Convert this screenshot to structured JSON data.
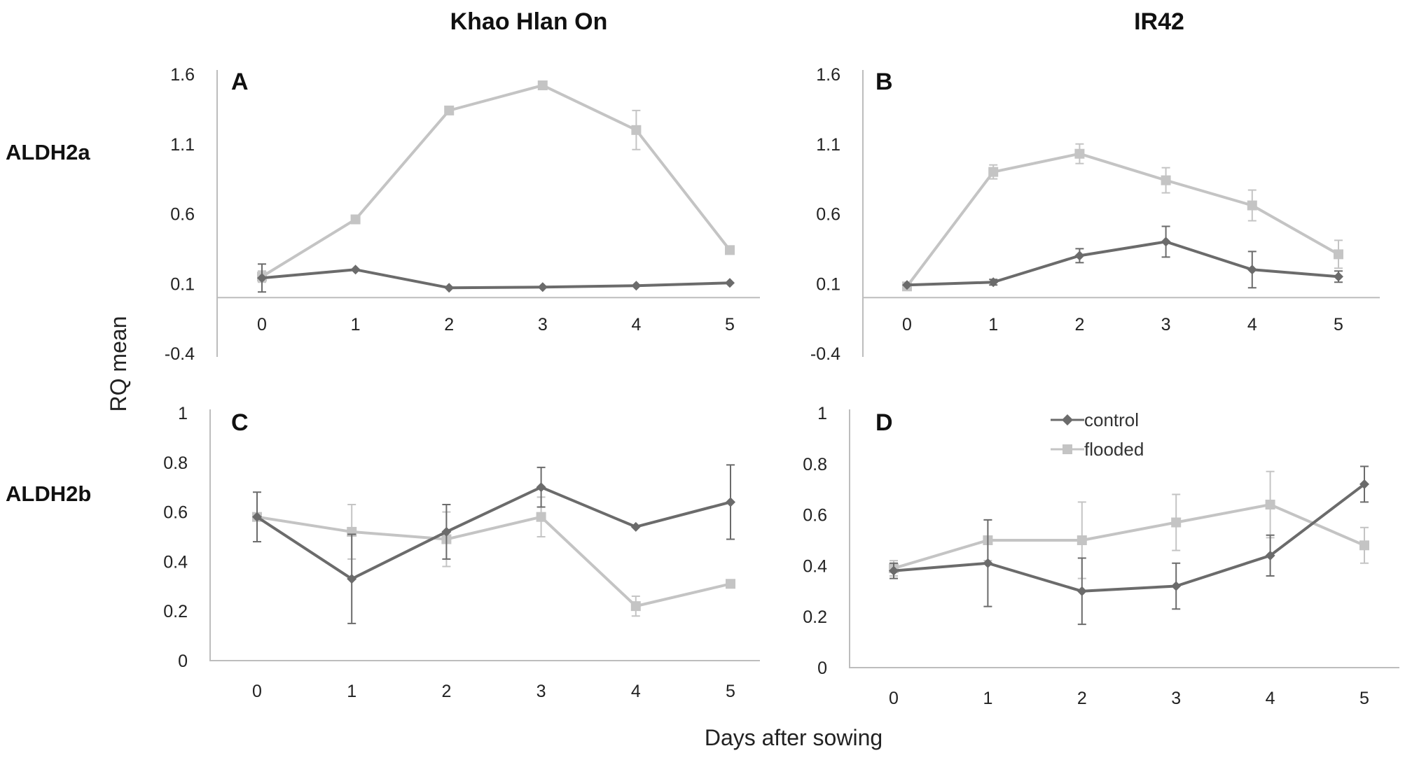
{
  "figure": {
    "column_titles": [
      "Khao Hlan On",
      "IR42"
    ],
    "row_labels": [
      "ALDH2a",
      "ALDH2b"
    ],
    "y_axis_title": "RQ mean",
    "x_axis_title": "Days after sowing"
  },
  "colors": {
    "control": "#6b6b6b",
    "flooded": "#c4c4c4",
    "axis": "#bdbdbd"
  },
  "legend": {
    "entries": [
      "control",
      "flooded"
    ]
  },
  "chart_data": [
    {
      "panel": "A",
      "type": "line",
      "gene": "ALDH2a",
      "cultivar": "Khao Hlan On",
      "x": [
        0,
        1,
        2,
        3,
        4,
        5
      ],
      "x_ticks": [
        "0",
        "1",
        "2",
        "3",
        "4",
        "5"
      ],
      "y_ticks": [
        "1.6",
        "1.1",
        "0.6",
        "0.1",
        "-0.4"
      ],
      "y_tick_values": [
        1.6,
        1.1,
        0.6,
        0.1,
        -0.4
      ],
      "ylim": [
        -0.4,
        1.6
      ],
      "baseline": 0,
      "series": [
        {
          "name": "control",
          "marker": "diamond",
          "values": [
            0.14,
            0.2,
            0.07,
            0.075,
            0.085,
            0.105
          ],
          "errors": [
            0.1,
            0,
            0,
            0,
            0,
            0
          ]
        },
        {
          "name": "flooded",
          "marker": "square",
          "values": [
            0.15,
            0.56,
            1.34,
            1.52,
            1.2,
            0.34
          ],
          "errors": [
            0.04,
            0,
            0,
            0,
            0.14,
            0
          ]
        }
      ]
    },
    {
      "panel": "B",
      "type": "line",
      "gene": "ALDH2a",
      "cultivar": "IR42",
      "x": [
        0,
        1,
        2,
        3,
        4,
        5
      ],
      "x_ticks": [
        "0",
        "1",
        "2",
        "3",
        "4",
        "5"
      ],
      "y_ticks": [
        "1.6",
        "1.1",
        "0.6",
        "0.1",
        "-0.4"
      ],
      "y_tick_values": [
        1.6,
        1.1,
        0.6,
        0.1,
        -0.4
      ],
      "ylim": [
        -0.4,
        1.6
      ],
      "baseline": 0,
      "series": [
        {
          "name": "control",
          "marker": "diamond",
          "values": [
            0.09,
            0.11,
            0.3,
            0.4,
            0.2,
            0.15
          ],
          "errors": [
            0,
            0.02,
            0.05,
            0.11,
            0.13,
            0.04
          ]
        },
        {
          "name": "flooded",
          "marker": "square",
          "values": [
            0.08,
            0.9,
            1.03,
            0.84,
            0.66,
            0.31
          ],
          "errors": [
            0,
            0.05,
            0.07,
            0.09,
            0.11,
            0.1
          ]
        }
      ]
    },
    {
      "panel": "C",
      "type": "line",
      "gene": "ALDH2b",
      "cultivar": "Khao Hlan On",
      "x": [
        0,
        1,
        2,
        3,
        4,
        5
      ],
      "x_ticks": [
        "0",
        "1",
        "2",
        "3",
        "4",
        "5"
      ],
      "y_ticks": [
        "1",
        "0.8",
        "0.6",
        "0.4",
        "0.2",
        "0"
      ],
      "y_tick_values": [
        1,
        0.8,
        0.6,
        0.4,
        0.2,
        0
      ],
      "ylim": [
        0,
        1
      ],
      "baseline": 0,
      "series": [
        {
          "name": "control",
          "marker": "diamond",
          "values": [
            0.58,
            0.33,
            0.52,
            0.7,
            0.54,
            0.64
          ],
          "errors": [
            0.1,
            0.18,
            0.11,
            0.08,
            0,
            0.15
          ]
        },
        {
          "name": "flooded",
          "marker": "square",
          "values": [
            0.58,
            0.52,
            0.49,
            0.58,
            0.22,
            0.31
          ],
          "errors": [
            0,
            0.11,
            0.11,
            0.08,
            0.04,
            0
          ]
        }
      ]
    },
    {
      "panel": "D",
      "type": "line",
      "gene": "ALDH2b",
      "cultivar": "IR42",
      "x": [
        0,
        1,
        2,
        3,
        4,
        5
      ],
      "x_ticks": [
        "0",
        "1",
        "2",
        "3",
        "4",
        "5"
      ],
      "y_ticks": [
        "1",
        "0.8",
        "0.6",
        "0.4",
        "0.2",
        "0"
      ],
      "y_tick_values": [
        1,
        0.8,
        0.6,
        0.4,
        0.2,
        0
      ],
      "ylim": [
        0,
        1
      ],
      "baseline": 0,
      "series": [
        {
          "name": "control",
          "marker": "diamond",
          "values": [
            0.38,
            0.41,
            0.3,
            0.32,
            0.44,
            0.72
          ],
          "errors": [
            0.03,
            0.17,
            0.13,
            0.09,
            0.08,
            0.07
          ]
        },
        {
          "name": "flooded",
          "marker": "square",
          "values": [
            0.39,
            0.5,
            0.5,
            0.57,
            0.64,
            0.48
          ],
          "errors": [
            0.03,
            0.08,
            0.15,
            0.11,
            0.13,
            0.07
          ]
        }
      ]
    }
  ]
}
